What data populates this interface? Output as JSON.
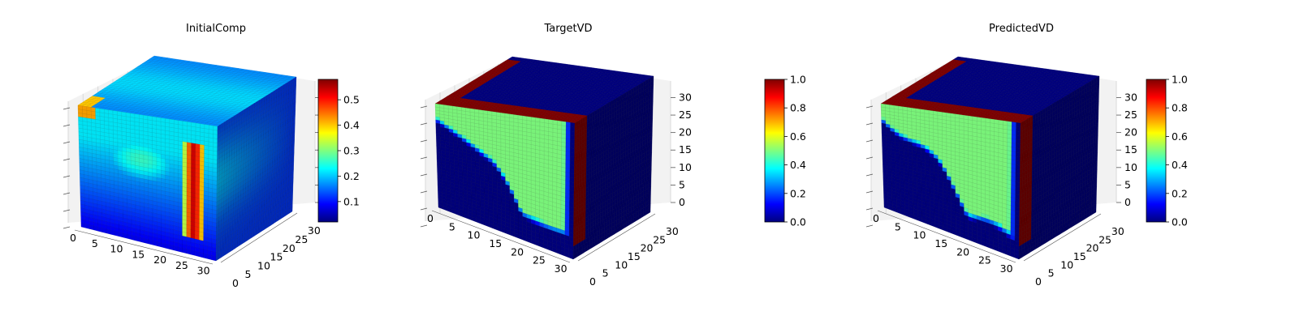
{
  "colors": {
    "jet": [
      "#00007f",
      "#0000ff",
      "#007fff",
      "#00ffff",
      "#7fff7f",
      "#ffff00",
      "#ff7f00",
      "#ff0000",
      "#7f0000"
    ],
    "pane": "#f2f2f2",
    "grid": "#d9d9d9",
    "axis": "#555555"
  },
  "chart_data": [
    {
      "type": "voxel-3d",
      "title": "InitialComp",
      "xlabel": "",
      "ylabel": "",
      "zlabel": "",
      "x_ticks": [
        "0",
        "5",
        "10",
        "15",
        "20",
        "25",
        "30"
      ],
      "y_ticks": [
        "0",
        "5",
        "10",
        "15",
        "20",
        "25",
        "30"
      ],
      "z_ticks": [],
      "grid_size": 32,
      "colorbar": {
        "min": 0.02,
        "max": 0.58,
        "ticks": [
          "0.1",
          "0.2",
          "0.3",
          "0.4",
          "0.5"
        ],
        "tick_values": [
          0.1,
          0.2,
          0.3,
          0.4,
          0.5
        ]
      }
    },
    {
      "type": "voxel-3d",
      "title": "TargetVD",
      "xlabel": "",
      "ylabel": "",
      "zlabel": "",
      "x_ticks": [
        "0",
        "5",
        "10",
        "15",
        "20",
        "25",
        "30"
      ],
      "y_ticks": [
        "0",
        "5",
        "10",
        "15",
        "20",
        "25",
        "30"
      ],
      "z_ticks": [
        "0",
        "5",
        "10",
        "15",
        "20",
        "25",
        "30"
      ],
      "grid_size": 32,
      "colorbar": {
        "min": 0.0,
        "max": 1.0,
        "ticks": [
          "0.0",
          "0.2",
          "0.4",
          "0.6",
          "0.8",
          "1.0"
        ],
        "tick_values": [
          0.0,
          0.2,
          0.4,
          0.6,
          0.8,
          1.0
        ]
      }
    },
    {
      "type": "voxel-3d",
      "title": "PredictedVD",
      "xlabel": "",
      "ylabel": "",
      "zlabel": "",
      "x_ticks": [
        "0",
        "5",
        "10",
        "15",
        "20",
        "25",
        "30"
      ],
      "y_ticks": [
        "0",
        "5",
        "10",
        "15",
        "20",
        "25",
        "30"
      ],
      "z_ticks": [
        "0",
        "5",
        "10",
        "15",
        "20",
        "25",
        "30"
      ],
      "grid_size": 32,
      "colorbar": {
        "min": 0.0,
        "max": 1.0,
        "ticks": [
          "0.0",
          "0.2",
          "0.4",
          "0.6",
          "0.8",
          "1.0"
        ],
        "tick_values": [
          0.0,
          0.2,
          0.4,
          0.6,
          0.8,
          1.0
        ]
      }
    }
  ]
}
